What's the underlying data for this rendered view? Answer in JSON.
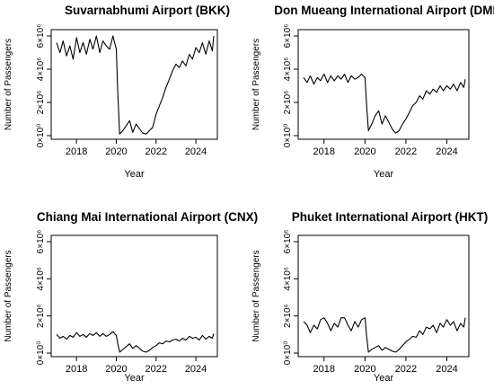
{
  "chart_data": [
    {
      "type": "line",
      "title": "Suvarnabhumi Airport (BKK)",
      "xlabel": "Year",
      "ylabel": "Number of Passengers",
      "xlim": [
        2017.0,
        2024.9
      ],
      "ylim": [
        0,
        6000000
      ],
      "xticks": [
        "2018",
        "2020",
        "2022",
        "2024"
      ],
      "yticks": [
        "0×10⁰",
        "2×10⁶",
        "4×10⁶",
        "6×10⁶"
      ],
      "grid": false,
      "series": [
        {
          "x": [
            2017.0,
            2017.17,
            2017.33,
            2017.5,
            2017.67,
            2017.83,
            2018.0,
            2018.17,
            2018.33,
            2018.5,
            2018.67,
            2018.83,
            2019.0,
            2019.17,
            2019.33,
            2019.5,
            2019.67,
            2019.83,
            2020.0,
            2020.08,
            2020.17,
            2020.33,
            2020.5,
            2020.67,
            2020.83,
            2021.0,
            2021.17,
            2021.33,
            2021.5,
            2021.67,
            2021.83,
            2022.0,
            2022.17,
            2022.33,
            2022.5,
            2022.67,
            2022.83,
            2023.0,
            2023.17,
            2023.33,
            2023.5,
            2023.67,
            2023.83,
            2024.0,
            2024.17,
            2024.33,
            2024.5,
            2024.67,
            2024.83,
            2024.9
          ],
          "y": [
            5600000,
            5000000,
            5700000,
            4800000,
            5400000,
            4600000,
            5900000,
            5000000,
            5600000,
            4900000,
            5800000,
            5200000,
            6000000,
            5000000,
            5700000,
            5400000,
            5200000,
            6000000,
            5200000,
            2500000,
            100000,
            300000,
            600000,
            900000,
            200000,
            700000,
            400000,
            150000,
            100000,
            300000,
            500000,
            1300000,
            1800000,
            2300000,
            2900000,
            3400000,
            3900000,
            4300000,
            4100000,
            4500000,
            4200000,
            4900000,
            4600000,
            5300000,
            5000000,
            5600000,
            4900000,
            5700000,
            5100000,
            6000000
          ]
        }
      ]
    },
    {
      "type": "line",
      "title": "Don Mueang International Airport (DMK)",
      "xlabel": "Year",
      "ylabel": "Number of Passengers",
      "xlim": [
        2017.0,
        2024.9
      ],
      "ylim": [
        0,
        6000000
      ],
      "xticks": [
        "2018",
        "2020",
        "2022",
        "2024"
      ],
      "yticks": [
        "0×10⁰",
        "2×10⁶",
        "4×10⁶",
        "6×10⁶"
      ],
      "grid": false,
      "series": [
        {
          "x": [
            2017.0,
            2017.17,
            2017.33,
            2017.5,
            2017.67,
            2017.83,
            2018.0,
            2018.17,
            2018.33,
            2018.5,
            2018.67,
            2018.83,
            2019.0,
            2019.17,
            2019.33,
            2019.5,
            2019.67,
            2019.83,
            2020.0,
            2020.08,
            2020.17,
            2020.33,
            2020.5,
            2020.67,
            2020.83,
            2021.0,
            2021.17,
            2021.33,
            2021.5,
            2021.67,
            2021.83,
            2022.0,
            2022.17,
            2022.33,
            2022.5,
            2022.67,
            2022.83,
            2023.0,
            2023.17,
            2023.33,
            2023.5,
            2023.67,
            2023.83,
            2024.0,
            2024.17,
            2024.33,
            2024.5,
            2024.67,
            2024.83,
            2024.9
          ],
          "y": [
            3500000,
            3200000,
            3600000,
            3100000,
            3500000,
            3300000,
            3700000,
            3200000,
            3600000,
            3300000,
            3600000,
            3400000,
            3700000,
            3200000,
            3600000,
            3400000,
            3500000,
            3700000,
            3500000,
            1800000,
            300000,
            700000,
            1200000,
            1500000,
            700000,
            1200000,
            800000,
            400000,
            150000,
            300000,
            700000,
            1000000,
            1400000,
            1800000,
            2000000,
            2400000,
            2200000,
            2700000,
            2500000,
            2800000,
            2600000,
            3000000,
            2700000,
            3000000,
            2800000,
            3100000,
            2700000,
            3200000,
            2900000,
            3400000
          ]
        }
      ]
    },
    {
      "type": "line",
      "title": "Chiang Mai International Airport (CNX)",
      "xlabel": "Year",
      "ylabel": "Number of Passengers",
      "xlim": [
        2017.0,
        2024.9
      ],
      "ylim": [
        0,
        6000000
      ],
      "xticks": [
        "2018",
        "2020",
        "2022",
        "2024"
      ],
      "yticks": [
        "0×10⁰",
        "2×10⁶",
        "4×10⁶",
        "6×10⁶"
      ],
      "grid": false,
      "series": [
        {
          "x": [
            2017.0,
            2017.17,
            2017.33,
            2017.5,
            2017.67,
            2017.83,
            2018.0,
            2018.17,
            2018.33,
            2018.5,
            2018.67,
            2018.83,
            2019.0,
            2019.17,
            2019.33,
            2019.5,
            2019.67,
            2019.83,
            2020.0,
            2020.08,
            2020.17,
            2020.33,
            2020.5,
            2020.67,
            2020.83,
            2021.0,
            2021.17,
            2021.33,
            2021.5,
            2021.67,
            2021.83,
            2022.0,
            2022.17,
            2022.33,
            2022.5,
            2022.67,
            2022.83,
            2023.0,
            2023.17,
            2023.33,
            2023.5,
            2023.67,
            2023.83,
            2024.0,
            2024.17,
            2024.33,
            2024.5,
            2024.67,
            2024.83,
            2024.9
          ],
          "y": [
            1000000,
            800000,
            900000,
            750000,
            950000,
            850000,
            1100000,
            900000,
            1000000,
            850000,
            1050000,
            950000,
            1100000,
            900000,
            1050000,
            900000,
            1000000,
            1150000,
            950000,
            500000,
            50000,
            200000,
            350000,
            500000,
            250000,
            400000,
            250000,
            100000,
            50000,
            150000,
            300000,
            400000,
            550000,
            500000,
            650000,
            600000,
            700000,
            750000,
            650000,
            800000,
            700000,
            900000,
            800000,
            850000,
            700000,
            950000,
            750000,
            900000,
            800000,
            1050000
          ]
        }
      ]
    },
    {
      "type": "line",
      "title": "Phuket International Airport (HKT)",
      "xlabel": "Year",
      "ylabel": "Number of Passengers",
      "xlim": [
        2017.0,
        2024.9
      ],
      "ylim": [
        0,
        6000000
      ],
      "xticks": [
        "2018",
        "2020",
        "2022",
        "2024"
      ],
      "yticks": [
        "0×10⁰",
        "2×10⁶",
        "4×10⁶",
        "6×10⁶"
      ],
      "grid": false,
      "series": [
        {
          "x": [
            2017.0,
            2017.17,
            2017.33,
            2017.5,
            2017.67,
            2017.83,
            2018.0,
            2018.17,
            2018.33,
            2018.5,
            2018.67,
            2018.83,
            2019.0,
            2019.17,
            2019.33,
            2019.5,
            2019.67,
            2019.83,
            2020.0,
            2020.08,
            2020.17,
            2020.33,
            2020.5,
            2020.67,
            2020.83,
            2021.0,
            2021.17,
            2021.33,
            2021.5,
            2021.67,
            2021.83,
            2022.0,
            2022.17,
            2022.33,
            2022.5,
            2022.67,
            2022.83,
            2023.0,
            2023.17,
            2023.33,
            2023.5,
            2023.67,
            2023.83,
            2024.0,
            2024.17,
            2024.33,
            2024.5,
            2024.67,
            2024.83,
            2024.9
          ],
          "y": [
            1700000,
            1500000,
            1100000,
            1500000,
            1300000,
            1800000,
            1900000,
            1600000,
            1200000,
            1600000,
            1400000,
            1900000,
            1900000,
            1500000,
            1200000,
            1700000,
            1400000,
            1800000,
            1900000,
            900000,
            50000,
            200000,
            300000,
            400000,
            150000,
            300000,
            200000,
            100000,
            50000,
            200000,
            400000,
            600000,
            750000,
            900000,
            850000,
            1200000,
            1000000,
            1400000,
            1300000,
            1500000,
            1100000,
            1600000,
            1400000,
            1800000,
            1500000,
            1700000,
            1200000,
            1600000,
            1400000,
            1900000
          ]
        }
      ]
    }
  ],
  "colors": {
    "line": "#000000",
    "axis": "#000000",
    "background": "#ffffff"
  }
}
